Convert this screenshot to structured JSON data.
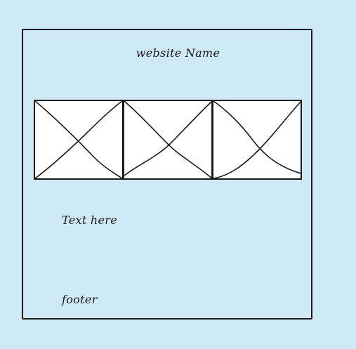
{
  "header": {
    "site_name": "website Name"
  },
  "gallery": {
    "images": [
      {
        "icon": "image-placeholder-icon"
      },
      {
        "icon": "image-placeholder-icon"
      },
      {
        "icon": "image-placeholder-icon"
      }
    ]
  },
  "content": {
    "text": "Text here"
  },
  "footer": {
    "text": "footer"
  },
  "colors": {
    "background": "#cdeaf6",
    "stroke": "#1a1a1a",
    "placeholder_fill": "#ffffff"
  }
}
